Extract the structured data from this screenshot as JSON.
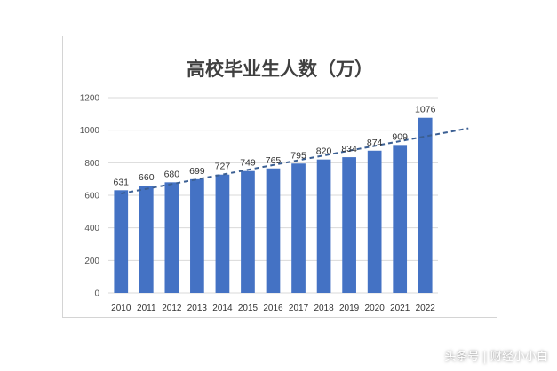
{
  "chart_data": {
    "type": "bar",
    "title": "高校毕业生人数（万）",
    "categories": [
      "2010",
      "2011",
      "2012",
      "2013",
      "2014",
      "2015",
      "2016",
      "2017",
      "2018",
      "2019",
      "2020",
      "2021",
      "2022"
    ],
    "values": [
      631,
      660,
      680,
      699,
      727,
      749,
      765,
      795,
      820,
      834,
      874,
      909,
      1076
    ],
    "ylim": [
      0,
      1200
    ],
    "yticks": [
      0,
      200,
      400,
      600,
      800,
      1000,
      1200
    ],
    "grid": true,
    "legend": "none",
    "bar_color": "#4472c4",
    "trendline": {
      "type": "linear",
      "style": "dashed",
      "color": "#3b5f93"
    }
  },
  "watermark": "头条号 | 财经小小白"
}
